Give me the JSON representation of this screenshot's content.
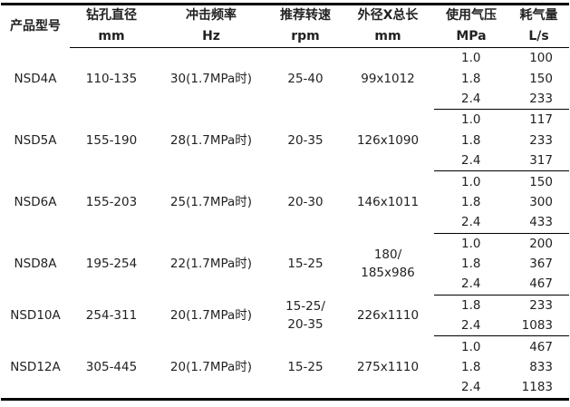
{
  "headers": [
    {
      "name": "产品型号",
      "unit": ""
    },
    {
      "name": "钻孔直径",
      "unit": "mm"
    },
    {
      "name": "冲击频率",
      "unit": "Hz"
    },
    {
      "name": "推荐转速",
      "unit": "rpm"
    },
    {
      "name": "外径X总长",
      "unit": "mm"
    },
    {
      "name": "使用气压",
      "unit": "MPa"
    },
    {
      "name": "耗气量",
      "unit": "L/s"
    }
  ],
  "rows": [
    {
      "model": "NSD4A",
      "drill": "110-135",
      "freq": "30(1.7MPa时)",
      "rpm": [
        "25-40"
      ],
      "size": [
        "99x1012"
      ],
      "points": [
        [
          "1.0",
          "100"
        ],
        [
          "1.8",
          "150"
        ],
        [
          "2.4",
          "233"
        ]
      ]
    },
    {
      "model": "NSD5A",
      "drill": "155-190",
      "freq": "28(1.7MPa时)",
      "rpm": [
        "20-35"
      ],
      "size": [
        "126x1090"
      ],
      "points": [
        [
          "1.0",
          "117"
        ],
        [
          "1.8",
          "233"
        ],
        [
          "2.4",
          "317"
        ]
      ]
    },
    {
      "model": "NSD6A",
      "drill": "155-203",
      "freq": "25(1.7MPa时)",
      "rpm": [
        "20-30"
      ],
      "size": [
        "146x1011"
      ],
      "points": [
        [
          "1.0",
          "150"
        ],
        [
          "1.8",
          "300"
        ],
        [
          "2.4",
          "433"
        ]
      ]
    },
    {
      "model": "NSD8A",
      "drill": "195-254",
      "freq": "22(1.7MPa时)",
      "rpm": [
        "15-25"
      ],
      "size": [
        "180/",
        "185x986"
      ],
      "points": [
        [
          "1.0",
          "200"
        ],
        [
          "1.8",
          "367"
        ],
        [
          "2.4",
          "467"
        ]
      ]
    },
    {
      "model": "NSD10A",
      "drill": "254-311",
      "freq": "20(1.7MPa时)",
      "rpm": [
        "15-25/",
        "20-35"
      ],
      "size": [
        "226x1110"
      ],
      "points": [
        [
          "1.8",
          "233"
        ],
        [
          "2.4",
          "1083"
        ]
      ]
    },
    {
      "model": "NSD12A",
      "drill": "305-445",
      "freq": "20(1.7MPa时)",
      "rpm": [
        "15-25"
      ],
      "size": [
        "275x1110"
      ],
      "points": [
        [
          "1.0",
          "467"
        ],
        [
          "1.8",
          "833"
        ],
        [
          "2.4",
          "1183"
        ]
      ]
    }
  ]
}
